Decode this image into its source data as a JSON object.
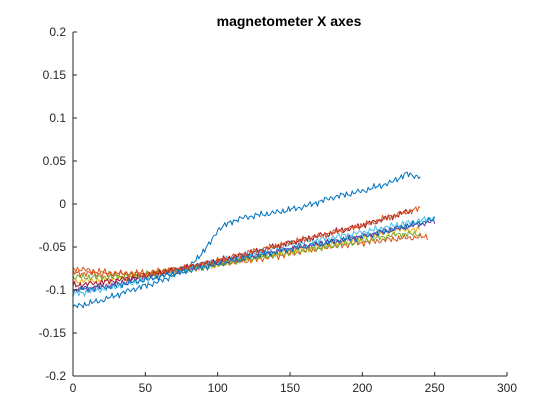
{
  "chart_data": {
    "type": "line",
    "title": "magnetometer X axes",
    "xlabel": "",
    "ylabel": "",
    "xlim": [
      0,
      300
    ],
    "ylim": [
      -0.2,
      0.2
    ],
    "x_ticks": [
      "0",
      "50",
      "100",
      "150",
      "200",
      "250",
      "300"
    ],
    "y_ticks": [
      "-0.2",
      "-0.15",
      "-0.1",
      "-0.05",
      "0",
      "0.05",
      "0.1",
      "0.15",
      "0.2"
    ],
    "grid": false,
    "legend": "none",
    "series": [
      {
        "color": "#0072BD",
        "x": [
          0,
          20,
          40,
          60,
          80,
          95,
          100,
          110,
          120,
          140,
          160,
          180,
          200,
          220,
          230,
          235,
          240
        ],
        "y": [
          -0.12,
          -0.112,
          -0.1,
          -0.09,
          -0.075,
          -0.045,
          -0.03,
          -0.02,
          -0.015,
          -0.01,
          -0.003,
          0.008,
          0.015,
          0.025,
          0.035,
          0.033,
          0.032
        ]
      },
      {
        "color": "#D95319",
        "x": [
          0,
          25,
          50,
          75,
          100,
          125,
          150,
          175,
          200,
          225,
          245
        ],
        "y": [
          -0.08,
          -0.082,
          -0.08,
          -0.075,
          -0.07,
          -0.065,
          -0.058,
          -0.05,
          -0.045,
          -0.04,
          -0.038
        ]
      },
      {
        "color": "#EDB120",
        "x": [
          0,
          25,
          50,
          75,
          100,
          125,
          150,
          175,
          200,
          225,
          240
        ],
        "y": [
          -0.09,
          -0.088,
          -0.083,
          -0.078,
          -0.07,
          -0.063,
          -0.055,
          -0.048,
          -0.04,
          -0.03,
          -0.03
        ]
      },
      {
        "color": "#7E2F8E",
        "x": [
          0,
          25,
          50,
          75,
          100,
          125,
          150,
          175,
          200,
          225,
          250
        ],
        "y": [
          -0.1,
          -0.095,
          -0.085,
          -0.075,
          -0.068,
          -0.06,
          -0.052,
          -0.045,
          -0.037,
          -0.028,
          -0.02
        ]
      },
      {
        "color": "#77AC30",
        "x": [
          0,
          25,
          50,
          75,
          100,
          125,
          150,
          175,
          200,
          225,
          240
        ],
        "y": [
          -0.085,
          -0.085,
          -0.082,
          -0.077,
          -0.07,
          -0.063,
          -0.056,
          -0.05,
          -0.043,
          -0.035,
          -0.035
        ]
      },
      {
        "color": "#4DBEEE",
        "x": [
          0,
          25,
          50,
          75,
          100,
          125,
          150,
          175,
          200,
          225,
          250
        ],
        "y": [
          -0.105,
          -0.098,
          -0.088,
          -0.077,
          -0.067,
          -0.057,
          -0.047,
          -0.04,
          -0.033,
          -0.024,
          -0.016
        ]
      },
      {
        "color": "#A2142F",
        "x": [
          0,
          25,
          50,
          75,
          100,
          125,
          150,
          175,
          200,
          225,
          235
        ],
        "y": [
          -0.095,
          -0.09,
          -0.083,
          -0.075,
          -0.066,
          -0.056,
          -0.045,
          -0.035,
          -0.025,
          -0.012,
          -0.007
        ]
      },
      {
        "color": "#D95319",
        "x": [
          0,
          25,
          50,
          75,
          100,
          125,
          150,
          175,
          200,
          225,
          240
        ],
        "y": [
          -0.075,
          -0.08,
          -0.082,
          -0.076,
          -0.066,
          -0.055,
          -0.045,
          -0.035,
          -0.025,
          -0.012,
          -0.005
        ]
      },
      {
        "color": "#0072BD",
        "x": [
          0,
          25,
          50,
          75,
          100,
          125,
          150,
          175,
          200,
          225,
          250
        ],
        "y": [
          -0.1,
          -0.096,
          -0.088,
          -0.079,
          -0.07,
          -0.061,
          -0.052,
          -0.045,
          -0.038,
          -0.028,
          -0.018
        ]
      }
    ]
  }
}
